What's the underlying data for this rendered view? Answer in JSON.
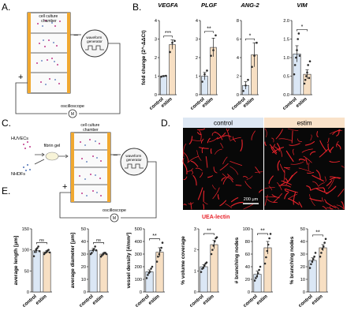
{
  "panel_letters": [
    "A.",
    "B.",
    "C.",
    "D.",
    "E."
  ],
  "schematic_a": {
    "chamber_label": "cell culture\nchamber",
    "generator_label": "waveform\ngenerator",
    "scope_label": "oscilloscope",
    "scope_symbol": "M",
    "plus": "+",
    "minus": "−"
  },
  "schematic_c": {
    "huvec_label": "HUVECs",
    "nhdf_label": "NHDFs",
    "gel_label": "fibrin gel",
    "chamber_label": "cell culture\nchamber",
    "generator_label": "waveform\ngenerator",
    "scope_label": "oscilloscope",
    "scope_symbol": "M",
    "plus": "+",
    "minus": "−"
  },
  "micrographs": {
    "control_label": "control",
    "estim_label": "estim",
    "scale_label": "200 μm",
    "stain_label": "UEA-lectin",
    "stain_color": "#e8232b"
  },
  "colors": {
    "control": "#dbe7f5",
    "estim": "#f7dfc3",
    "control_header": "#dde7f3",
    "estim_header": "#f9e2c9",
    "point": "#2b2b2b"
  },
  "chart_data": [
    {
      "type": "bar",
      "panel": "B",
      "title": "VEGFA",
      "ylabel": "fold change (2^-ΔΔCt)",
      "categories": [
        "control",
        "estim"
      ],
      "values": [
        1.0,
        2.7
      ],
      "errors": [
        0.03,
        0.25
      ],
      "ylim": [
        0,
        4
      ],
      "yticks": [
        0,
        1,
        2,
        3,
        4
      ],
      "significance": "***",
      "points": [
        [
          0.97,
          1.0,
          1.02
        ],
        [
          2.3,
          2.8,
          2.9
        ]
      ]
    },
    {
      "type": "bar",
      "panel": "B",
      "title": "PLGF",
      "ylabel": "",
      "categories": [
        "control",
        "estim"
      ],
      "values": [
        1.0,
        2.55
      ],
      "errors": [
        0.2,
        0.5
      ],
      "ylim": [
        0,
        4
      ],
      "yticks": [
        0,
        1,
        2,
        3,
        4
      ],
      "significance": "**",
      "points": [
        [
          0.7,
          1.1,
          1.3
        ],
        [
          2.1,
          2.4,
          3.2
        ]
      ]
    },
    {
      "type": "bar",
      "panel": "B",
      "title": "ANG-2",
      "ylabel": "",
      "categories": [
        "control",
        "estim"
      ],
      "values": [
        1.0,
        4.3
      ],
      "errors": [
        0.4,
        1.3
      ],
      "ylim": [
        0,
        8
      ],
      "yticks": [
        0,
        2,
        4,
        6,
        8
      ],
      "significance": "*",
      "points": [
        [
          0.4,
          1.0,
          1.6
        ],
        [
          3.0,
          4.2,
          5.6
        ]
      ]
    },
    {
      "type": "bar",
      "panel": "B",
      "title": "VIM",
      "ylabel": "",
      "categories": [
        "control",
        "estim"
      ],
      "values": [
        1.1,
        0.55
      ],
      "errors": [
        0.22,
        0.12
      ],
      "ylim": [
        0,
        2
      ],
      "yticks": [
        0.0,
        0.5,
        1.0,
        1.5,
        2.0
      ],
      "significance": "*",
      "points": [
        [
          0.55,
          0.8,
          1.0,
          1.2,
          1.5,
          1.65,
          1.05
        ],
        [
          0.3,
          0.4,
          0.5,
          0.6,
          0.8,
          0.45,
          0.9
        ]
      ]
    },
    {
      "type": "bar",
      "panel": "E",
      "title": "",
      "ylabel": "average length [μm]",
      "categories": [
        "control",
        "estim"
      ],
      "values": [
        98,
        95
      ],
      "errors": [
        5,
        3
      ],
      "ylim": [
        0,
        150
      ],
      "yticks": [
        0,
        50,
        100,
        150
      ],
      "significance": "ns",
      "points": [
        [
          85,
          95,
          100,
          104,
          108,
          97
        ],
        [
          90,
          93,
          95,
          98,
          100,
          94
        ]
      ]
    },
    {
      "type": "bar",
      "panel": "E",
      "title": "",
      "ylabel": "average diameter [μm]",
      "categories": [
        "control",
        "estim"
      ],
      "values": [
        33,
        30
      ],
      "errors": [
        1.5,
        1
      ],
      "ylim": [
        0,
        50
      ],
      "yticks": [
        0,
        10,
        20,
        30,
        40,
        50
      ],
      "significance": "ns",
      "points": [
        [
          30,
          31,
          33,
          34,
          36,
          33
        ],
        [
          28,
          29,
          30,
          31,
          31,
          30
        ]
      ]
    },
    {
      "type": "bar",
      "panel": "E",
      "title": "",
      "ylabel": "vessel density [#/mm²]",
      "categories": [
        "control",
        "estim"
      ],
      "values": [
        160,
        315
      ],
      "errors": [
        15,
        35
      ],
      "ylim": [
        0,
        500
      ],
      "yticks": [
        0,
        100,
        200,
        300,
        400,
        500
      ],
      "significance": "**",
      "points": [
        [
          110,
          135,
          150,
          160,
          185,
          200
        ],
        [
          240,
          280,
          300,
          330,
          350,
          390
        ]
      ]
    },
    {
      "type": "bar",
      "panel": "E",
      "title": "",
      "ylabel": "% volume coverage",
      "categories": [
        "control",
        "estim"
      ],
      "values": [
        1.2,
        2.25
      ],
      "errors": [
        0.1,
        0.2
      ],
      "ylim": [
        0,
        3
      ],
      "yticks": [
        0,
        1,
        2,
        3
      ],
      "significance": "**",
      "points": [
        [
          0.95,
          1.1,
          1.15,
          1.25,
          1.35,
          1.4
        ],
        [
          1.8,
          2.0,
          2.2,
          2.4,
          2.55,
          2.6
        ]
      ]
    },
    {
      "type": "bar",
      "panel": "E",
      "title": "",
      "ylabel": "# branching nodes",
      "categories": [
        "control",
        "estim"
      ],
      "values": [
        28,
        70
      ],
      "errors": [
        5,
        10
      ],
      "ylim": [
        0,
        100
      ],
      "yticks": [
        0,
        20,
        40,
        60,
        80,
        100
      ],
      "significance": "**",
      "points": [
        [
          18,
          22,
          25,
          30,
          35,
          40
        ],
        [
          45,
          55,
          65,
          75,
          85,
          92
        ]
      ]
    },
    {
      "type": "bar",
      "panel": "E",
      "title": "",
      "ylabel": "% branching nodes",
      "categories": [
        "control",
        "estim"
      ],
      "values": [
        25,
        35
      ],
      "errors": [
        2,
        2.5
      ],
      "ylim": [
        0,
        50
      ],
      "yticks": [
        0,
        10,
        20,
        30,
        40,
        50
      ],
      "significance": "**",
      "points": [
        [
          19,
          22,
          24,
          26,
          28,
          31
        ],
        [
          28,
          31,
          34,
          36,
          39,
          42
        ]
      ]
    }
  ]
}
